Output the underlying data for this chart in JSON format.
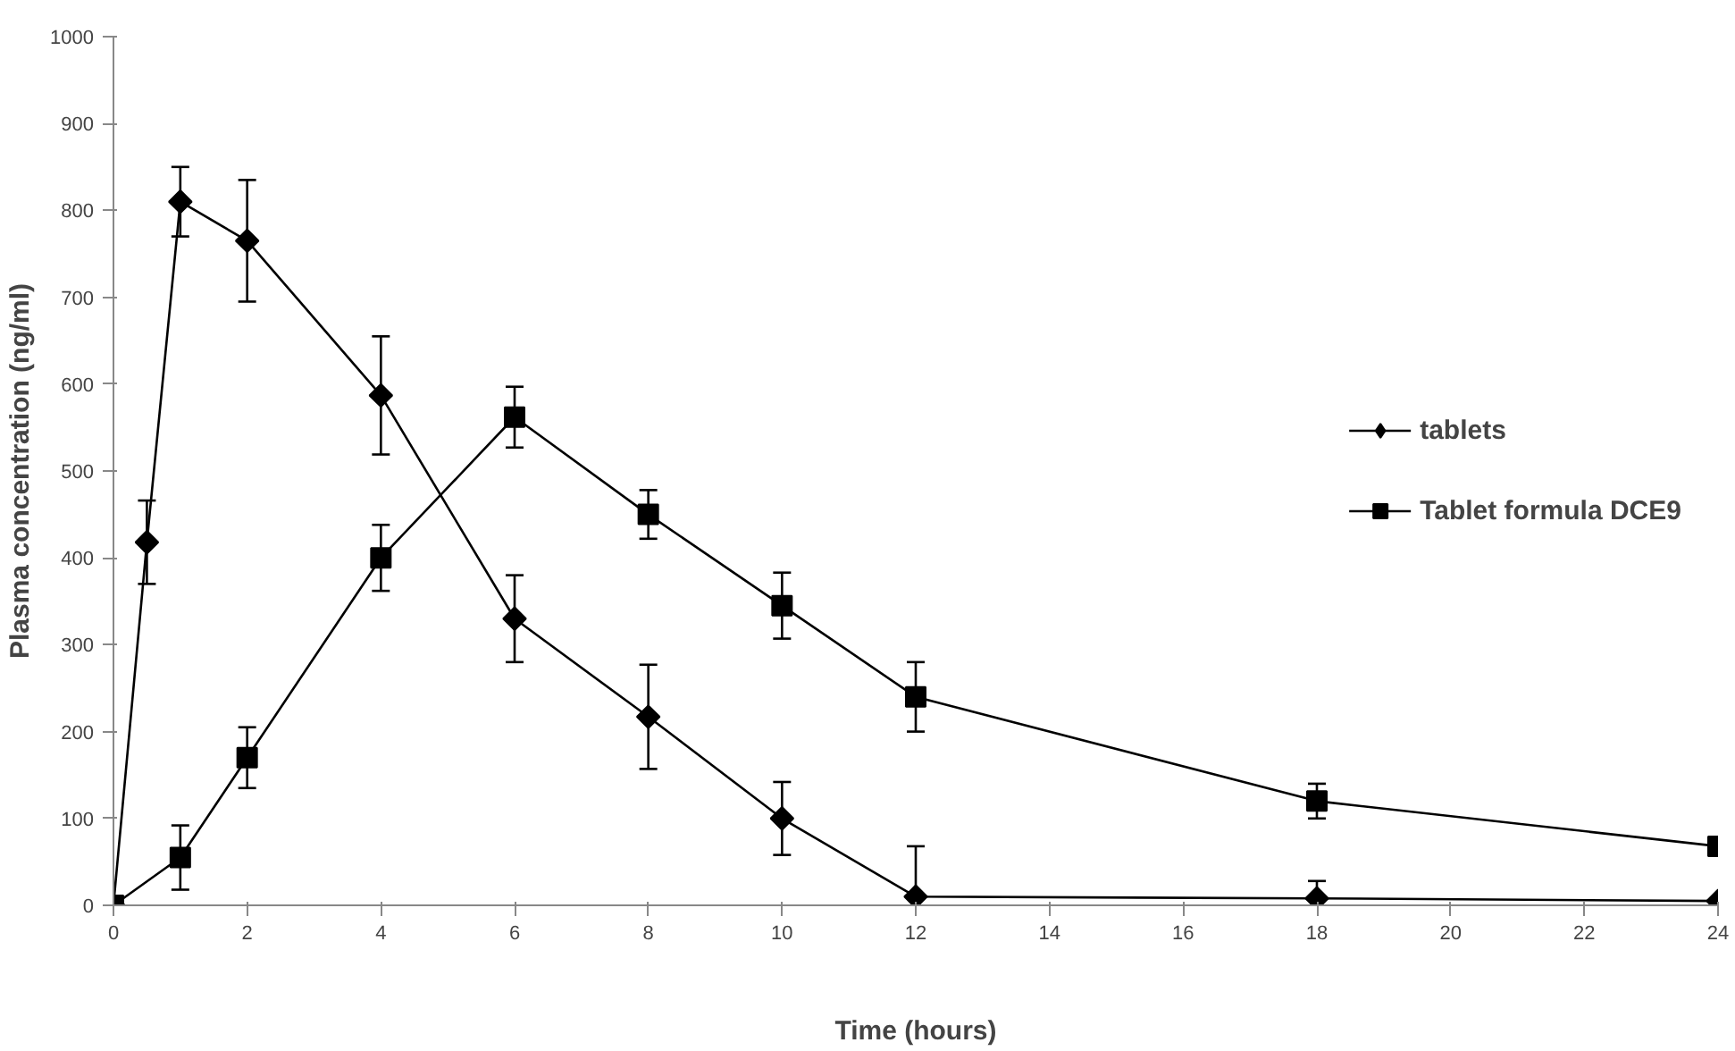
{
  "chart_data": {
    "type": "line",
    "xlabel": "Time (hours)",
    "ylabel": "Plasma concentration (ng/ml)",
    "xlim": [
      0,
      24
    ],
    "xticks": [
      0,
      2,
      4,
      6,
      8,
      10,
      12,
      14,
      16,
      18,
      20,
      22,
      24
    ],
    "ylim": [
      0,
      1000
    ],
    "yticks": [
      0,
      100,
      200,
      300,
      400,
      500,
      600,
      700,
      800,
      900,
      1000
    ],
    "grid": false,
    "legend": "right",
    "line_style": "solid",
    "series": [
      {
        "name": "tablets",
        "color": "#000000",
        "marker": "diamond",
        "x": [
          0,
          0.5,
          1,
          2,
          4,
          6,
          8,
          10,
          12,
          18,
          24
        ],
        "values": [
          0,
          418,
          810,
          765,
          587,
          330,
          217,
          100,
          10,
          8,
          5
        ],
        "errors": [
          null,
          48,
          40,
          70,
          68,
          50,
          60,
          42,
          58,
          20,
          null
        ]
      },
      {
        "name": "Tablet formula DCE9",
        "color": "#000000",
        "marker": "square",
        "x": [
          0,
          1,
          2,
          4,
          6,
          8,
          10,
          12,
          18,
          24
        ],
        "values": [
          0,
          55,
          170,
          400,
          562,
          450,
          345,
          240,
          120,
          68
        ],
        "errors": [
          null,
          37,
          35,
          38,
          35,
          28,
          38,
          40,
          20,
          null
        ]
      }
    ]
  }
}
